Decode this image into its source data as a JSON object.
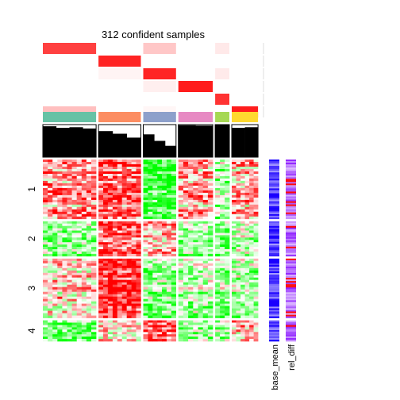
{
  "chart_data": {
    "type": "heatmap",
    "title": "312 confident samples",
    "row_groups": [
      "1",
      "2",
      "3",
      "4"
    ],
    "row_group_fraction": [
      0.34,
      0.2,
      0.34,
      0.12
    ],
    "column_groups": [
      {
        "color": "#66C2A5",
        "fraction": 0.255
      },
      {
        "color": "#FC8D62",
        "fraction": 0.203
      },
      {
        "color": "#8DA0CB",
        "fraction": 0.157
      },
      {
        "color": "#E78AC3",
        "fraction": 0.165
      },
      {
        "color": "#A6D854",
        "fraction": 0.068
      },
      {
        "color": "#FFD92F",
        "fraction": 0.126
      }
    ],
    "top_probability_tracks": 6,
    "silhouette_levels": [
      [
        0.95,
        0.9,
        0.92,
        0.88
      ],
      [
        0.8,
        0.72,
        0.6
      ],
      [
        0.7,
        0.5,
        0.35
      ],
      [
        0.98,
        0.97
      ],
      [
        0.99
      ],
      [
        0.9,
        0.92
      ]
    ],
    "annotation_columns": [
      "base_mean",
      "rel_diff"
    ],
    "colors": {
      "heat_low": "#00FF00",
      "heat_mid": "#FFFFFF",
      "heat_high": "#FF0000",
      "prob_high": "#FF0000",
      "prob_low": "#FFFFFF",
      "base_mean_high": "#1A00FF",
      "base_mean_low": "#FFFFFF",
      "rel_diff_high": "#FF0000",
      "rel_diff_low": "#7F00FF",
      "silhouette": "#000000"
    }
  }
}
